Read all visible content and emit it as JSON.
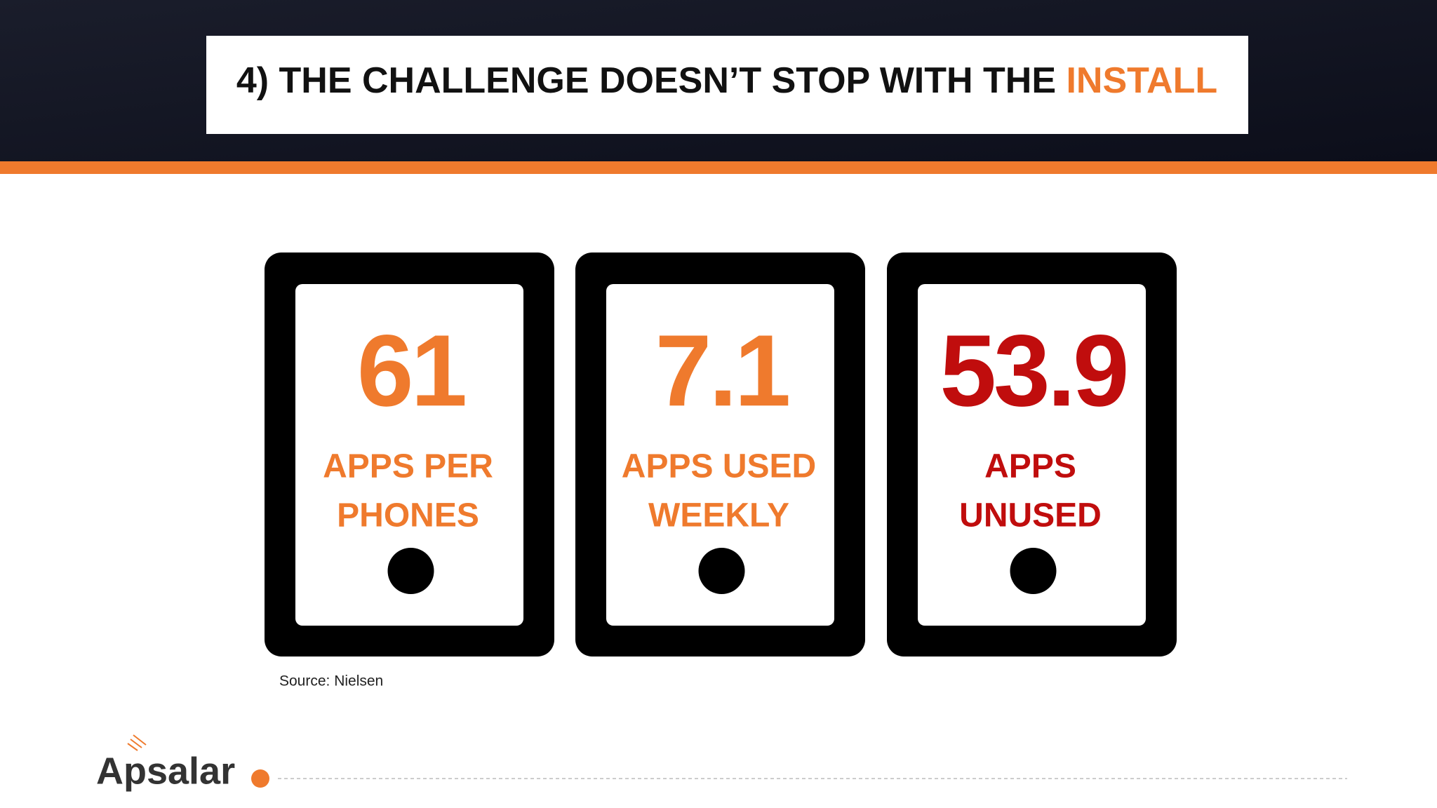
{
  "header": {
    "title": [
      "4) THE CHALLENGE DOESN’T STOP WITH THE ",
      "INSTALL"
    ]
  },
  "cards": [
    {
      "number": "61",
      "label": [
        "APPS PER",
        "PHONES"
      ],
      "color": "#ef7a2d"
    },
    {
      "number": "7.1",
      "label": [
        "APPS USED",
        "WEEKLY"
      ],
      "color": "#ef7a2d"
    },
    {
      "number": "53.9",
      "label": [
        "APPS",
        "UNUSED"
      ],
      "color": "#c00d0d"
    }
  ],
  "source": "Source: Nielsen",
  "logo": "Apsalar"
}
